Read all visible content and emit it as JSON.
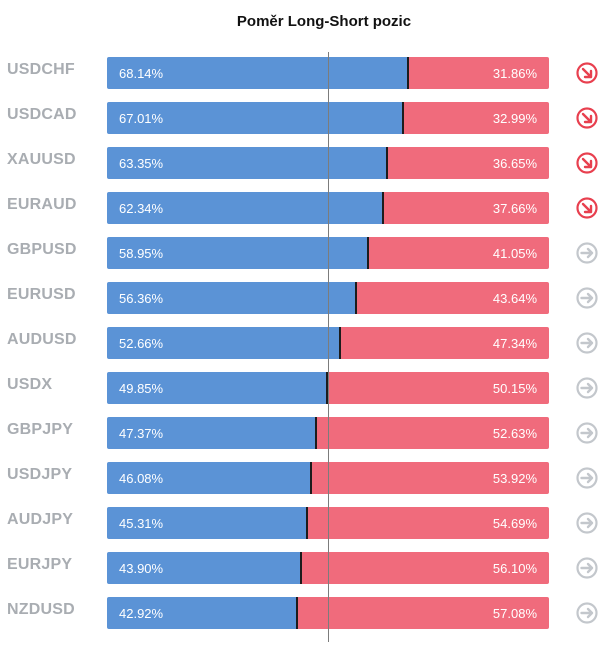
{
  "title": "Poměr Long-Short pozic",
  "colors": {
    "long": "#5b93d6",
    "short": "#f06b7c",
    "pair_label": "#a9adb2",
    "icon_alert": "#e8404f",
    "icon_neutral": "#c3c7cc"
  },
  "chart_data": {
    "type": "bar",
    "orientation": "horizontal-stacked-100",
    "title": "Poměr Long-Short pozic",
    "categories": [
      "USDCHF",
      "USDCAD",
      "XAUUSD",
      "EURAUD",
      "GBPUSD",
      "EURUSD",
      "AUDUSD",
      "USDX",
      "GBPJPY",
      "USDJPY",
      "AUDJPY",
      "EURJPY",
      "NZDUSD"
    ],
    "series": [
      {
        "values": [
          68.14,
          67.01,
          63.35,
          62.34,
          58.95,
          56.36,
          52.66,
          49.85,
          47.37,
          46.08,
          45.31,
          43.9,
          42.92
        ],
        "labels": [
          "68.14%",
          "67.01%",
          "63.35%",
          "62.34%",
          "58.95%",
          "56.36%",
          "52.66%",
          "49.85%",
          "47.37%",
          "46.08%",
          "45.31%",
          "43.90%",
          "42.92%"
        ]
      },
      {
        "values": [
          31.86,
          32.99,
          36.65,
          37.66,
          41.05,
          43.64,
          47.34,
          50.15,
          52.63,
          53.92,
          54.69,
          56.1,
          57.08
        ],
        "labels": [
          "31.86%",
          "32.99%",
          "36.65%",
          "37.66%",
          "41.05%",
          "43.64%",
          "47.34%",
          "50.15%",
          "52.63%",
          "53.92%",
          "54.69%",
          "56.10%",
          "57.08%"
        ]
      }
    ],
    "xlim": [
      0,
      100
    ],
    "reference_line": 50,
    "icons": [
      "arrow-down-right-icon",
      "arrow-down-right-icon",
      "arrow-down-right-icon",
      "arrow-down-right-icon",
      "arrow-right-icon",
      "arrow-right-icon",
      "arrow-right-icon",
      "arrow-right-icon",
      "arrow-right-icon",
      "arrow-right-icon",
      "arrow-right-icon",
      "arrow-right-icon",
      "arrow-right-icon"
    ],
    "grid": false,
    "legend": "none"
  }
}
